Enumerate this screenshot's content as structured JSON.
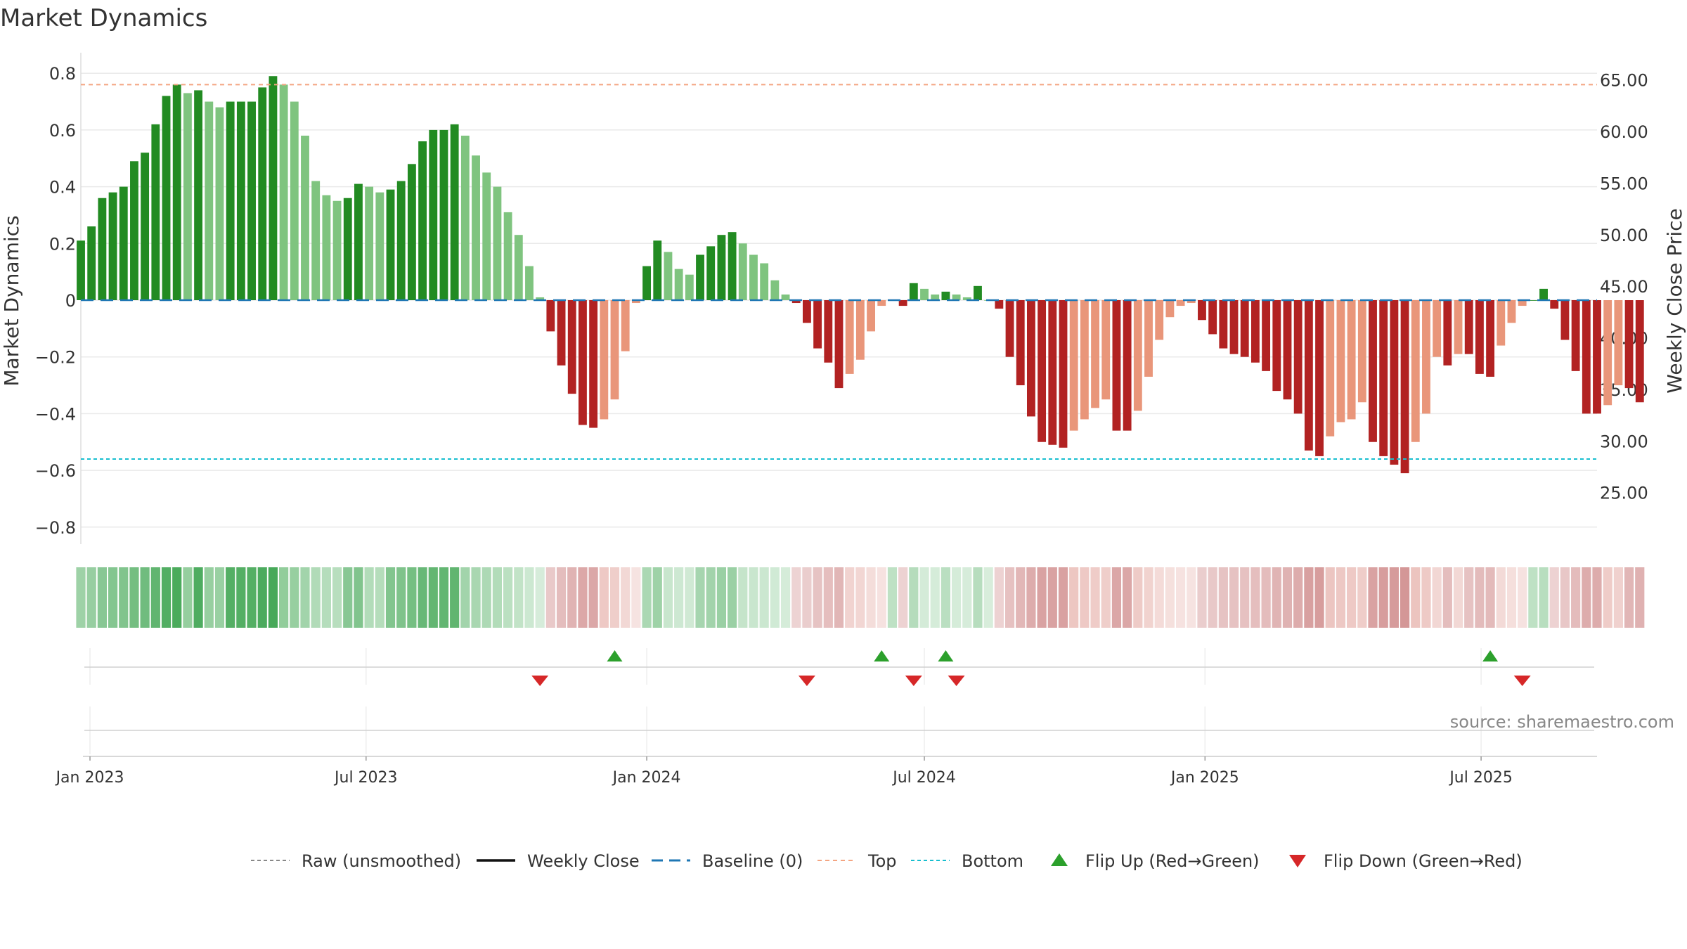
{
  "title": "Market Dynamics",
  "source": "source: sharemaestro.com",
  "chart_data": {
    "type": "bar",
    "title": "Market Dynamics",
    "ylabel_left": "Market Dynamics",
    "ylabel_right": "Weekly Close Price",
    "ylim_left": [
      -0.86,
      0.86
    ],
    "ylim_right": [
      20.0,
      67.3
    ],
    "yticks_left": [
      0.8,
      0.6,
      0.4,
      0.2,
      0,
      -0.2,
      -0.4,
      -0.6,
      -0.8
    ],
    "ytick_labels_left": [
      "0.8",
      "0.6",
      "0.4",
      "0.2",
      "0",
      "−0.2",
      "−0.4",
      "−0.6",
      "−0.8"
    ],
    "yticks_right": [
      65,
      60,
      55,
      50,
      45,
      40,
      35,
      30,
      25
    ],
    "ytick_labels_right": [
      "65.00",
      "60.00",
      "55.00",
      "50.00",
      "45.00",
      "40.00",
      "35.00",
      "30.00",
      "25.00"
    ],
    "x_start": "2022-12-26",
    "x_end": "2025-09-15",
    "xticks": [
      "2023-01-01",
      "2023-07-01",
      "2024-01-01",
      "2024-07-01",
      "2025-01-01",
      "2025-07-01"
    ],
    "xtick_labels": [
      "Jan 2023",
      "Jul 2023",
      "Jan 2024",
      "Jul 2024",
      "Jan 2025",
      "Jul 2025"
    ],
    "top_level": 0.76,
    "bottom_level": -0.56,
    "grid": true,
    "legend_position": "bottom",
    "first_week": "2022-12-26",
    "values": [
      0.21,
      0.26,
      0.36,
      0.38,
      0.4,
      0.49,
      0.52,
      0.62,
      0.72,
      0.76,
      0.73,
      0.74,
      0.7,
      0.68,
      0.7,
      0.7,
      0.7,
      0.75,
      0.79,
      0.76,
      0.7,
      0.58,
      0.42,
      0.37,
      0.35,
      0.36,
      0.41,
      0.4,
      0.38,
      0.39,
      0.42,
      0.48,
      0.56,
      0.6,
      0.6,
      0.62,
      0.58,
      0.51,
      0.45,
      0.4,
      0.31,
      0.23,
      0.12,
      0.01,
      -0.11,
      -0.23,
      -0.33,
      -0.44,
      -0.45,
      -0.42,
      -0.35,
      -0.18,
      -0.01,
      0.12,
      0.21,
      0.17,
      0.11,
      0.09,
      0.16,
      0.19,
      0.23,
      0.24,
      0.2,
      0.16,
      0.13,
      0.07,
      0.02,
      -0.01,
      -0.08,
      -0.17,
      -0.22,
      -0.31,
      -0.26,
      -0.21,
      -0.11,
      -0.02,
      0.0,
      -0.02,
      0.06,
      0.04,
      0.02,
      0.03,
      0.02,
      0.01,
      0.05,
      0.0,
      -0.03,
      -0.2,
      -0.3,
      -0.41,
      -0.5,
      -0.51,
      -0.52,
      -0.46,
      -0.42,
      -0.38,
      -0.35,
      -0.46,
      -0.46,
      -0.39,
      -0.27,
      -0.14,
      -0.06,
      -0.02,
      -0.01,
      -0.07,
      -0.12,
      -0.17,
      -0.19,
      -0.2,
      -0.22,
      -0.25,
      -0.32,
      -0.35,
      -0.4,
      -0.53,
      -0.55,
      -0.48,
      -0.43,
      -0.42,
      -0.36,
      -0.5,
      -0.55,
      -0.58,
      -0.61,
      -0.5,
      -0.4,
      -0.2,
      -0.23,
      -0.19,
      -0.19,
      -0.26,
      -0.27,
      -0.16,
      -0.08,
      -0.02,
      0.0,
      0.04,
      -0.03,
      -0.14,
      -0.25,
      -0.4,
      -0.4,
      -0.37,
      -0.3,
      -0.31,
      -0.36
    ],
    "flip_up_dates": [
      "2023-12-11",
      "2024-06-03",
      "2024-07-15",
      "2025-07-07"
    ],
    "flip_down_dates": [
      "2023-10-23",
      "2024-04-15",
      "2024-06-24",
      "2024-07-22",
      "2025-07-28"
    ],
    "legend": [
      "Raw (unsmoothed)",
      "Weekly Close",
      "Baseline (0)",
      "Top",
      "Bottom",
      "Flip Up (Red→Green)",
      "Flip Down (Green→Red)"
    ],
    "colors": {
      "strong_up": "#228b22",
      "weak_up": "#7fc47f",
      "strong_down": "#b22222",
      "weak_down": "#e9967a",
      "close": "#111111",
      "raw": "#888888",
      "baseline": "#1f77b4",
      "top": "#f4a582",
      "bottom": "#17becf",
      "flip_up": "#2ca02c",
      "flip_down": "#d62728",
      "grid": "#eaeaea"
    }
  }
}
